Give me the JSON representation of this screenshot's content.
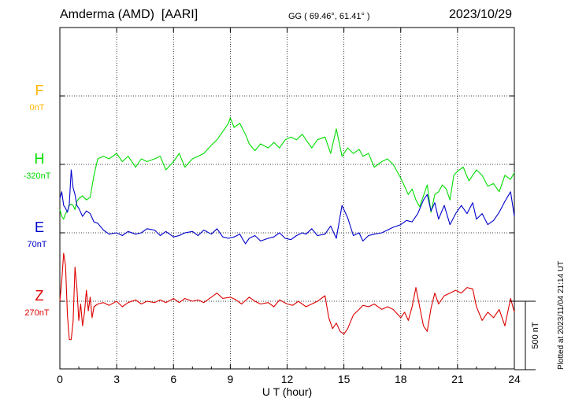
{
  "header": {
    "station": "Amderma (AMD)",
    "org": "[AARI]",
    "coords": "GG ( 69.46°,  61.41° )",
    "date": "2023/10/29"
  },
  "plotted_note": "Plotted at 2023/11/04 21:14 UT",
  "chart_data": {
    "type": "line",
    "title": "Amderma (AMD)  [AARI]",
    "xlabel": "U T (hour)",
    "xlim": [
      0,
      24
    ],
    "x_ticks": [
      "0",
      "3",
      "6",
      "9",
      "12",
      "15",
      "18",
      "21",
      "24"
    ],
    "scale_bar_label": "500 nT",
    "scale_bar_nT": 500,
    "grid": true,
    "colors": {
      "F": "#ffb400",
      "H": "#00dd00",
      "E": "#0000cc",
      "Z": "#dd0000"
    },
    "series": [
      {
        "name": "F",
        "offset_label": "0nT",
        "x": [],
        "y": []
      },
      {
        "name": "H",
        "offset_label": "-320nT",
        "x": [
          0,
          0.1,
          0.2,
          0.3,
          0.4,
          0.5,
          0.6,
          0.7,
          0.8,
          0.9,
          1.0,
          1.2,
          1.4,
          1.6,
          1.8,
          2.0,
          2.3,
          2.6,
          3.0,
          3.3,
          3.6,
          4.0,
          4.3,
          4.6,
          5.0,
          5.3,
          5.6,
          6.0,
          6.3,
          6.6,
          7.0,
          7.3,
          7.6,
          8.0,
          8.3,
          8.6,
          8.9,
          9.0,
          9.2,
          9.5,
          9.8,
          10.0,
          10.3,
          10.6,
          11.0,
          11.3,
          11.6,
          11.9,
          12.2,
          12.5,
          12.8,
          13.0,
          13.3,
          13.6,
          14.0,
          14.3,
          14.6,
          14.9,
          15.2,
          15.5,
          15.8,
          16.0,
          16.3,
          16.6,
          17.0,
          17.3,
          17.6,
          18.0,
          18.2,
          18.4,
          18.6,
          18.8,
          19.0,
          19.2,
          19.4,
          19.6,
          19.8,
          20.0,
          20.2,
          20.4,
          20.6,
          20.8,
          21.0,
          21.3,
          21.6,
          22.0,
          22.3,
          22.6,
          22.9,
          23.2,
          23.5,
          23.8,
          24.0
        ],
        "y": [
          -330,
          -380,
          -400,
          -360,
          -340,
          -300,
          -290,
          -300,
          -330,
          -270,
          -250,
          -230,
          -260,
          -240,
          -80,
          40,
          60,
          40,
          80,
          20,
          60,
          -20,
          40,
          20,
          40,
          60,
          -40,
          20,
          80,
          -20,
          40,
          60,
          80,
          140,
          180,
          240,
          300,
          340,
          270,
          300,
          220,
          150,
          100,
          150,
          120,
          160,
          120,
          180,
          200,
          180,
          220,
          180,
          120,
          180,
          200,
          80,
          260,
          60,
          120,
          80,
          110,
          60,
          80,
          -20,
          20,
          40,
          0,
          -100,
          -160,
          -220,
          -180,
          -260,
          -310,
          -230,
          -150,
          -350,
          -220,
          -200,
          -150,
          -180,
          -260,
          -80,
          -50,
          -20,
          -120,
          -40,
          -80,
          -160,
          -140,
          -200,
          -80,
          -110,
          -60
        ]
      },
      {
        "name": "E",
        "offset_label": "70nT",
        "x": [
          0,
          0.1,
          0.2,
          0.3,
          0.4,
          0.5,
          0.6,
          0.7,
          0.8,
          0.9,
          1.0,
          1.2,
          1.4,
          1.6,
          1.8,
          2.0,
          2.3,
          2.6,
          3.0,
          3.3,
          3.6,
          4.0,
          4.3,
          4.6,
          5.0,
          5.3,
          5.6,
          6.0,
          6.3,
          6.6,
          7.0,
          7.3,
          7.6,
          8.0,
          8.3,
          8.6,
          8.9,
          9.2,
          9.5,
          9.8,
          10.0,
          10.3,
          10.6,
          11.0,
          11.3,
          11.6,
          11.9,
          12.2,
          12.5,
          12.8,
          13.0,
          13.3,
          13.6,
          14.0,
          14.3,
          14.6,
          14.9,
          15.2,
          15.5,
          15.8,
          16.0,
          16.3,
          16.6,
          17.0,
          17.3,
          17.6,
          18.0,
          18.3,
          18.6,
          18.9,
          19.2,
          19.4,
          19.6,
          19.8,
          20.0,
          20.3,
          20.6,
          20.9,
          21.2,
          21.5,
          21.8,
          22.0,
          22.3,
          22.6,
          22.9,
          23.2,
          23.5,
          23.8,
          24.0
        ],
        "y": [
          250,
          300,
          200,
          180,
          150,
          210,
          460,
          330,
          280,
          200,
          180,
          120,
          160,
          140,
          80,
          70,
          20,
          -10,
          0,
          -20,
          10,
          -10,
          0,
          30,
          20,
          -20,
          10,
          -30,
          -20,
          0,
          10,
          -20,
          20,
          -10,
          30,
          -30,
          -40,
          -30,
          -10,
          -80,
          -40,
          -20,
          -60,
          -40,
          -30,
          0,
          -40,
          -50,
          -20,
          0,
          -10,
          30,
          -20,
          -10,
          50,
          -40,
          200,
          110,
          -20,
          0,
          -60,
          -20,
          -10,
          0,
          20,
          40,
          60,
          90,
          80,
          140,
          240,
          280,
          160,
          220,
          100,
          200,
          60,
          140,
          200,
          140,
          220,
          100,
          140,
          60,
          90,
          150,
          230,
          300,
          120
        ]
      },
      {
        "name": "Z",
        "offset_label": "270nT",
        "x": [
          0,
          0.1,
          0.2,
          0.3,
          0.4,
          0.5,
          0.6,
          0.7,
          0.8,
          0.9,
          1.0,
          1.1,
          1.2,
          1.3,
          1.4,
          1.5,
          1.6,
          1.7,
          1.8,
          2.0,
          2.3,
          2.6,
          3.0,
          3.3,
          3.6,
          4.0,
          4.3,
          4.6,
          5.0,
          5.3,
          5.6,
          6.0,
          6.3,
          6.6,
          7.0,
          7.3,
          7.6,
          8.0,
          8.3,
          8.6,
          9.0,
          9.3,
          9.6,
          10.0,
          10.3,
          10.6,
          11.0,
          11.3,
          11.6,
          12.0,
          12.3,
          12.6,
          13.0,
          13.3,
          13.6,
          14.0,
          14.2,
          14.4,
          14.6,
          14.8,
          15.0,
          15.2,
          15.5,
          15.8,
          16.0,
          16.3,
          16.6,
          17.0,
          17.3,
          17.6,
          18.0,
          18.2,
          18.4,
          18.6,
          18.8,
          19.0,
          19.2,
          19.4,
          19.6,
          19.8,
          20.0,
          20.3,
          20.6,
          20.9,
          21.2,
          21.5,
          21.8,
          22.0,
          22.3,
          22.6,
          22.9,
          23.2,
          23.5,
          23.8,
          24.0
        ],
        "y": [
          0,
          150,
          350,
          260,
          -100,
          -280,
          -280,
          -150,
          250,
          100,
          -140,
          -20,
          -180,
          -80,
          80,
          -70,
          30,
          -120,
          -40,
          -20,
          -10,
          -30,
          0,
          -40,
          -10,
          10,
          -20,
          0,
          -10,
          10,
          -10,
          20,
          -10,
          20,
          0,
          10,
          -10,
          30,
          60,
          20,
          30,
          10,
          -20,
          30,
          0,
          -20,
          -10,
          -40,
          10,
          -20,
          -30,
          0,
          -40,
          -20,
          0,
          40,
          -120,
          -200,
          -160,
          -220,
          -240,
          -200,
          -100,
          -60,
          -30,
          -40,
          -20,
          -60,
          -40,
          -60,
          -120,
          -80,
          -140,
          -40,
          100,
          -40,
          -180,
          -220,
          -50,
          60,
          -20,
          40,
          60,
          80,
          60,
          100,
          90,
          -40,
          -140,
          -80,
          -120,
          -60,
          -180,
          20,
          -80
        ]
      }
    ]
  }
}
